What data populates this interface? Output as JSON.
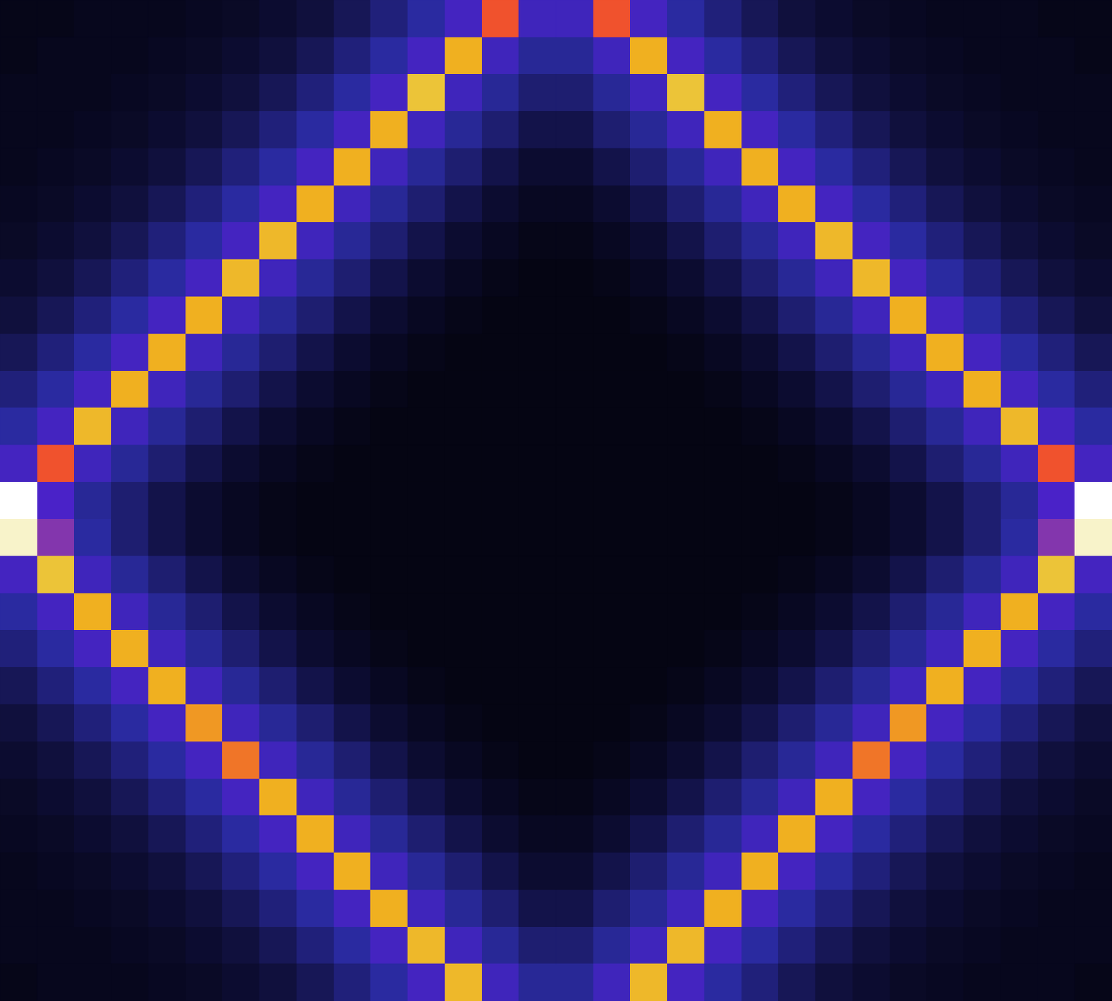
{
  "chart_data": {
    "type": "heatmap",
    "tick_labels": false,
    "zlim": [
      0,
      1
    ],
    "cells": [
      [
        0.05,
        0.05,
        0.06,
        0.06,
        0.06,
        0.07,
        0.08,
        0.1,
        0.12,
        0.16,
        0.22,
        0.3,
        0.42,
        0.72,
        0.4,
        0.4,
        0.72,
        0.42,
        0.3,
        0.22,
        0.16,
        0.12,
        0.1,
        0.08,
        0.07,
        0.06,
        0.06,
        0.06,
        0.05,
        0.05
      ],
      [
        0.05,
        0.06,
        0.06,
        0.06,
        0.07,
        0.08,
        0.1,
        0.12,
        0.16,
        0.22,
        0.3,
        0.42,
        0.8,
        0.4,
        0.28,
        0.28,
        0.4,
        0.8,
        0.42,
        0.3,
        0.22,
        0.16,
        0.12,
        0.1,
        0.08,
        0.07,
        0.06,
        0.06,
        0.06,
        0.05
      ],
      [
        0.06,
        0.06,
        0.06,
        0.07,
        0.08,
        0.1,
        0.12,
        0.16,
        0.22,
        0.3,
        0.42,
        0.85,
        0.4,
        0.28,
        0.2,
        0.2,
        0.28,
        0.4,
        0.85,
        0.42,
        0.3,
        0.22,
        0.16,
        0.12,
        0.1,
        0.08,
        0.07,
        0.06,
        0.06,
        0.06
      ],
      [
        0.06,
        0.06,
        0.07,
        0.08,
        0.1,
        0.12,
        0.16,
        0.22,
        0.3,
        0.42,
        0.8,
        0.4,
        0.28,
        0.2,
        0.14,
        0.14,
        0.2,
        0.28,
        0.4,
        0.8,
        0.42,
        0.3,
        0.22,
        0.16,
        0.12,
        0.1,
        0.08,
        0.07,
        0.06,
        0.06
      ],
      [
        0.06,
        0.07,
        0.08,
        0.1,
        0.12,
        0.16,
        0.22,
        0.3,
        0.42,
        0.8,
        0.4,
        0.28,
        0.2,
        0.14,
        0.1,
        0.1,
        0.14,
        0.2,
        0.28,
        0.4,
        0.8,
        0.42,
        0.3,
        0.22,
        0.16,
        0.12,
        0.1,
        0.08,
        0.07,
        0.06
      ],
      [
        0.07,
        0.08,
        0.1,
        0.12,
        0.16,
        0.22,
        0.3,
        0.42,
        0.8,
        0.4,
        0.28,
        0.2,
        0.14,
        0.1,
        0.07,
        0.07,
        0.1,
        0.14,
        0.2,
        0.28,
        0.4,
        0.8,
        0.42,
        0.3,
        0.22,
        0.16,
        0.12,
        0.1,
        0.08,
        0.07
      ],
      [
        0.08,
        0.1,
        0.12,
        0.16,
        0.22,
        0.3,
        0.42,
        0.82,
        0.4,
        0.28,
        0.2,
        0.14,
        0.1,
        0.07,
        0.05,
        0.05,
        0.07,
        0.1,
        0.14,
        0.2,
        0.28,
        0.4,
        0.82,
        0.42,
        0.3,
        0.22,
        0.16,
        0.12,
        0.1,
        0.08
      ],
      [
        0.1,
        0.12,
        0.16,
        0.22,
        0.3,
        0.42,
        0.82,
        0.4,
        0.28,
        0.2,
        0.14,
        0.1,
        0.07,
        0.05,
        0.04,
        0.04,
        0.05,
        0.07,
        0.1,
        0.14,
        0.2,
        0.28,
        0.4,
        0.82,
        0.42,
        0.3,
        0.22,
        0.16,
        0.12,
        0.1
      ],
      [
        0.12,
        0.16,
        0.22,
        0.3,
        0.42,
        0.8,
        0.4,
        0.28,
        0.2,
        0.14,
        0.1,
        0.07,
        0.05,
        0.04,
        0.04,
        0.04,
        0.04,
        0.05,
        0.07,
        0.1,
        0.14,
        0.2,
        0.28,
        0.4,
        0.8,
        0.42,
        0.3,
        0.22,
        0.16,
        0.12
      ],
      [
        0.16,
        0.22,
        0.3,
        0.42,
        0.8,
        0.4,
        0.28,
        0.2,
        0.14,
        0.1,
        0.07,
        0.05,
        0.04,
        0.04,
        0.04,
        0.04,
        0.04,
        0.04,
        0.05,
        0.07,
        0.1,
        0.14,
        0.2,
        0.28,
        0.4,
        0.8,
        0.42,
        0.3,
        0.22,
        0.16
      ],
      [
        0.22,
        0.3,
        0.42,
        0.8,
        0.4,
        0.28,
        0.2,
        0.14,
        0.1,
        0.07,
        0.05,
        0.04,
        0.04,
        0.04,
        0.04,
        0.04,
        0.04,
        0.04,
        0.04,
        0.05,
        0.07,
        0.1,
        0.14,
        0.2,
        0.28,
        0.4,
        0.8,
        0.42,
        0.3,
        0.22
      ],
      [
        0.3,
        0.42,
        0.82,
        0.4,
        0.28,
        0.2,
        0.14,
        0.1,
        0.07,
        0.05,
        0.04,
        0.04,
        0.04,
        0.04,
        0.04,
        0.04,
        0.04,
        0.04,
        0.04,
        0.04,
        0.05,
        0.07,
        0.1,
        0.14,
        0.2,
        0.28,
        0.4,
        0.82,
        0.42,
        0.3
      ],
      [
        0.42,
        0.72,
        0.4,
        0.28,
        0.2,
        0.14,
        0.1,
        0.07,
        0.05,
        0.04,
        0.04,
        0.04,
        0.04,
        0.04,
        0.04,
        0.04,
        0.04,
        0.04,
        0.04,
        0.04,
        0.04,
        0.05,
        0.07,
        0.1,
        0.14,
        0.2,
        0.28,
        0.4,
        0.72,
        0.42
      ],
      [
        1,
        0.45,
        0.28,
        0.2,
        0.14,
        0.1,
        0.07,
        0.05,
        0.04,
        0.04,
        0.04,
        0.04,
        0.04,
        0.04,
        0.04,
        0.04,
        0.04,
        0.04,
        0.04,
        0.04,
        0.04,
        0.04,
        0.05,
        0.07,
        0.1,
        0.14,
        0.2,
        0.28,
        0.45,
        1
      ],
      [
        0.97,
        0.55,
        0.3,
        0.2,
        0.14,
        0.1,
        0.07,
        0.05,
        0.04,
        0.04,
        0.04,
        0.04,
        0.04,
        0.04,
        0.04,
        0.04,
        0.04,
        0.04,
        0.04,
        0.04,
        0.04,
        0.04,
        0.05,
        0.07,
        0.1,
        0.14,
        0.2,
        0.3,
        0.55,
        0.97
      ],
      [
        0.42,
        0.85,
        0.4,
        0.28,
        0.2,
        0.14,
        0.1,
        0.07,
        0.05,
        0.04,
        0.04,
        0.04,
        0.04,
        0.04,
        0.04,
        0.04,
        0.04,
        0.04,
        0.04,
        0.04,
        0.04,
        0.05,
        0.07,
        0.1,
        0.14,
        0.2,
        0.28,
        0.4,
        0.85,
        0.42
      ],
      [
        0.3,
        0.42,
        0.8,
        0.4,
        0.28,
        0.2,
        0.14,
        0.1,
        0.07,
        0.05,
        0.04,
        0.04,
        0.04,
        0.04,
        0.04,
        0.04,
        0.04,
        0.04,
        0.04,
        0.04,
        0.05,
        0.07,
        0.1,
        0.14,
        0.2,
        0.28,
        0.4,
        0.8,
        0.42,
        0.3
      ],
      [
        0.22,
        0.3,
        0.42,
        0.8,
        0.4,
        0.28,
        0.2,
        0.14,
        0.1,
        0.07,
        0.05,
        0.04,
        0.04,
        0.04,
        0.04,
        0.04,
        0.04,
        0.04,
        0.04,
        0.05,
        0.07,
        0.1,
        0.14,
        0.2,
        0.28,
        0.4,
        0.8,
        0.42,
        0.3,
        0.22
      ],
      [
        0.16,
        0.22,
        0.3,
        0.42,
        0.8,
        0.4,
        0.28,
        0.2,
        0.14,
        0.1,
        0.07,
        0.05,
        0.04,
        0.04,
        0.04,
        0.04,
        0.04,
        0.04,
        0.05,
        0.07,
        0.1,
        0.14,
        0.2,
        0.28,
        0.4,
        0.8,
        0.42,
        0.3,
        0.22,
        0.16
      ],
      [
        0.12,
        0.16,
        0.22,
        0.3,
        0.42,
        0.78,
        0.4,
        0.28,
        0.2,
        0.14,
        0.1,
        0.07,
        0.05,
        0.04,
        0.04,
        0.04,
        0.04,
        0.05,
        0.07,
        0.1,
        0.14,
        0.2,
        0.28,
        0.4,
        0.78,
        0.42,
        0.3,
        0.22,
        0.16,
        0.12
      ],
      [
        0.1,
        0.12,
        0.16,
        0.22,
        0.3,
        0.42,
        0.75,
        0.4,
        0.28,
        0.2,
        0.14,
        0.1,
        0.07,
        0.05,
        0.04,
        0.04,
        0.05,
        0.07,
        0.1,
        0.14,
        0.2,
        0.28,
        0.4,
        0.75,
        0.42,
        0.3,
        0.22,
        0.16,
        0.12,
        0.1
      ],
      [
        0.08,
        0.1,
        0.12,
        0.16,
        0.22,
        0.3,
        0.42,
        0.8,
        0.4,
        0.28,
        0.2,
        0.14,
        0.1,
        0.07,
        0.05,
        0.05,
        0.07,
        0.1,
        0.14,
        0.2,
        0.28,
        0.4,
        0.8,
        0.42,
        0.3,
        0.22,
        0.16,
        0.12,
        0.1,
        0.08
      ],
      [
        0.07,
        0.08,
        0.1,
        0.12,
        0.16,
        0.22,
        0.3,
        0.42,
        0.8,
        0.4,
        0.28,
        0.2,
        0.14,
        0.1,
        0.07,
        0.07,
        0.1,
        0.14,
        0.2,
        0.28,
        0.4,
        0.8,
        0.42,
        0.3,
        0.22,
        0.16,
        0.12,
        0.1,
        0.08,
        0.07
      ],
      [
        0.06,
        0.07,
        0.08,
        0.1,
        0.12,
        0.16,
        0.22,
        0.3,
        0.42,
        0.8,
        0.4,
        0.28,
        0.2,
        0.14,
        0.1,
        0.1,
        0.14,
        0.2,
        0.28,
        0.4,
        0.8,
        0.42,
        0.3,
        0.22,
        0.16,
        0.12,
        0.1,
        0.08,
        0.07,
        0.06
      ],
      [
        0.06,
        0.06,
        0.07,
        0.08,
        0.1,
        0.12,
        0.16,
        0.22,
        0.3,
        0.42,
        0.8,
        0.4,
        0.28,
        0.2,
        0.14,
        0.14,
        0.2,
        0.28,
        0.4,
        0.8,
        0.42,
        0.3,
        0.22,
        0.16,
        0.12,
        0.1,
        0.08,
        0.07,
        0.06,
        0.06
      ],
      [
        0.06,
        0.06,
        0.06,
        0.07,
        0.08,
        0.1,
        0.12,
        0.16,
        0.22,
        0.3,
        0.42,
        0.82,
        0.4,
        0.28,
        0.2,
        0.2,
        0.28,
        0.4,
        0.82,
        0.42,
        0.3,
        0.22,
        0.16,
        0.12,
        0.1,
        0.08,
        0.07,
        0.06,
        0.06,
        0.06
      ],
      [
        0.05,
        0.06,
        0.06,
        0.06,
        0.07,
        0.08,
        0.1,
        0.12,
        0.16,
        0.22,
        0.3,
        0.42,
        0.82,
        0.4,
        0.28,
        0.28,
        0.4,
        0.82,
        0.42,
        0.3,
        0.22,
        0.16,
        0.12,
        0.1,
        0.08,
        0.07,
        0.06,
        0.06,
        0.06,
        0.05
      ]
    ]
  }
}
